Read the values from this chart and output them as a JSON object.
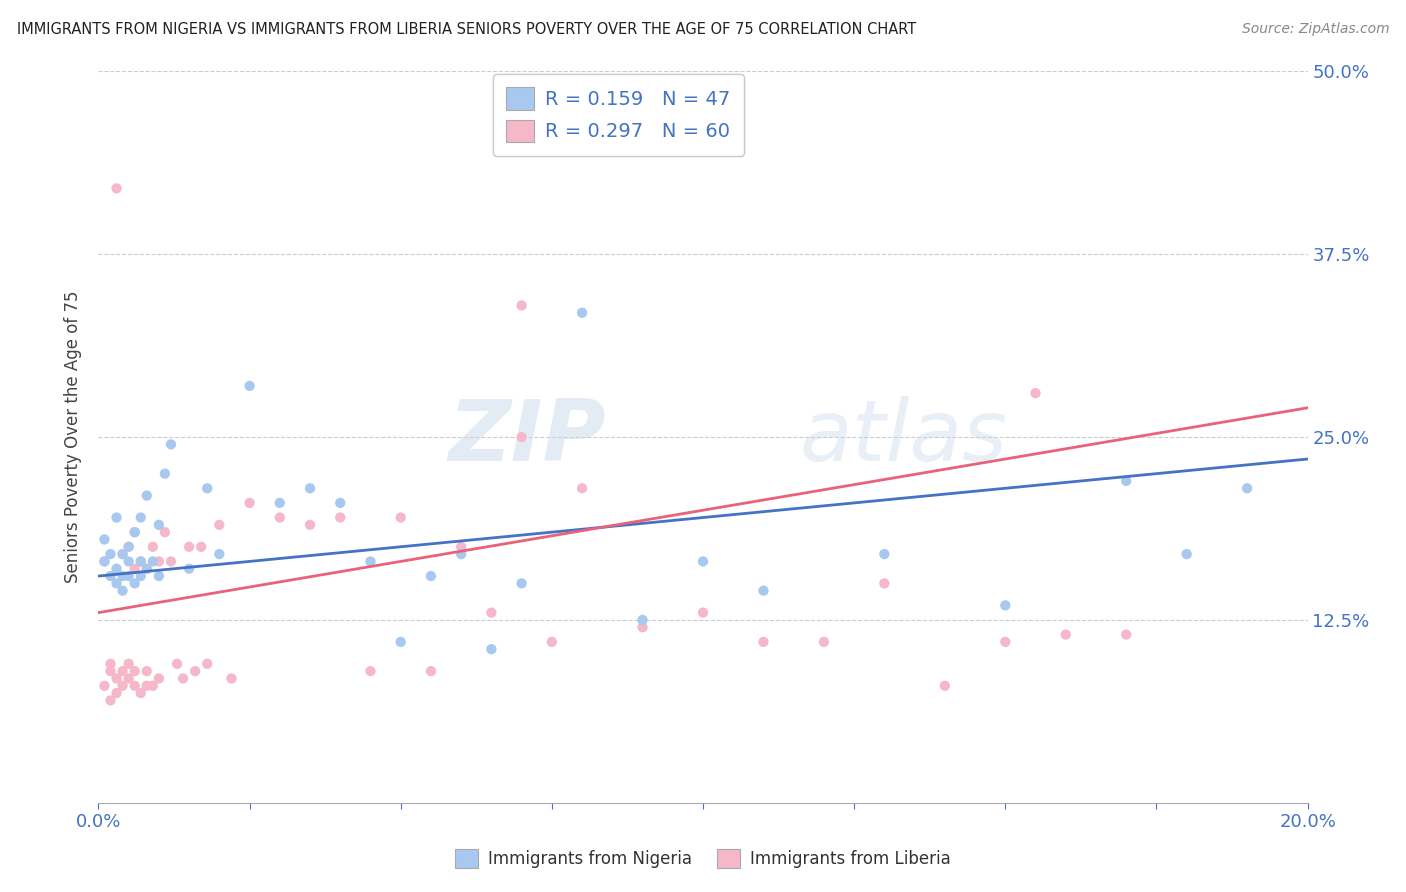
{
  "title": "IMMIGRANTS FROM NIGERIA VS IMMIGRANTS FROM LIBERIA SENIORS POVERTY OVER THE AGE OF 75 CORRELATION CHART",
  "source": "Source: ZipAtlas.com",
  "ylabel": "Seniors Poverty Over the Age of 75",
  "xlabel_nigeria": "Immigrants from Nigeria",
  "xlabel_liberia": "Immigrants from Liberia",
  "xlim": [
    0.0,
    0.2
  ],
  "ylim": [
    0.0,
    0.5
  ],
  "yticks": [
    0.0,
    0.125,
    0.25,
    0.375,
    0.5
  ],
  "xticks": [
    0.0,
    0.025,
    0.05,
    0.075,
    0.1,
    0.125,
    0.15,
    0.175,
    0.2
  ],
  "nigeria_R": 0.159,
  "nigeria_N": 47,
  "liberia_R": 0.297,
  "liberia_N": 60,
  "nigeria_color": "#a8c8f0",
  "liberia_color": "#f5b8c8",
  "nigeria_line_color": "#4472c4",
  "liberia_line_color": "#e8637a",
  "title_color": "#222222",
  "axis_label_color": "#4472c4",
  "legend_text_color": "#4472c4",
  "watermark_zip": "ZIP",
  "watermark_atlas": "atlas",
  "background_color": "#ffffff",
  "grid_color": "#cccccc",
  "scatter_size": 55,
  "nigeria_x": [
    0.001,
    0.001,
    0.002,
    0.002,
    0.003,
    0.003,
    0.003,
    0.004,
    0.004,
    0.004,
    0.005,
    0.005,
    0.005,
    0.006,
    0.006,
    0.007,
    0.007,
    0.007,
    0.008,
    0.008,
    0.009,
    0.01,
    0.01,
    0.011,
    0.012,
    0.015,
    0.018,
    0.02,
    0.025,
    0.03,
    0.035,
    0.04,
    0.045,
    0.05,
    0.055,
    0.06,
    0.065,
    0.07,
    0.08,
    0.09,
    0.1,
    0.11,
    0.13,
    0.15,
    0.17,
    0.18,
    0.19
  ],
  "nigeria_y": [
    0.165,
    0.18,
    0.155,
    0.17,
    0.15,
    0.16,
    0.195,
    0.145,
    0.17,
    0.155,
    0.155,
    0.175,
    0.165,
    0.15,
    0.185,
    0.155,
    0.165,
    0.195,
    0.21,
    0.16,
    0.165,
    0.155,
    0.19,
    0.225,
    0.245,
    0.16,
    0.215,
    0.17,
    0.285,
    0.205,
    0.215,
    0.205,
    0.165,
    0.11,
    0.155,
    0.17,
    0.105,
    0.15,
    0.335,
    0.125,
    0.165,
    0.145,
    0.17,
    0.135,
    0.22,
    0.17,
    0.215
  ],
  "liberia_x": [
    0.001,
    0.001,
    0.002,
    0.002,
    0.002,
    0.003,
    0.003,
    0.003,
    0.004,
    0.004,
    0.004,
    0.005,
    0.005,
    0.005,
    0.006,
    0.006,
    0.006,
    0.006,
    0.007,
    0.007,
    0.008,
    0.008,
    0.008,
    0.009,
    0.009,
    0.01,
    0.01,
    0.011,
    0.012,
    0.013,
    0.014,
    0.015,
    0.016,
    0.017,
    0.018,
    0.02,
    0.022,
    0.025,
    0.03,
    0.035,
    0.04,
    0.045,
    0.05,
    0.055,
    0.06,
    0.065,
    0.07,
    0.075,
    0.08,
    0.09,
    0.1,
    0.11,
    0.12,
    0.13,
    0.14,
    0.15,
    0.16,
    0.17,
    0.155,
    0.07
  ],
  "liberia_y": [
    0.165,
    0.08,
    0.095,
    0.07,
    0.09,
    0.085,
    0.075,
    0.42,
    0.09,
    0.08,
    0.17,
    0.085,
    0.095,
    0.175,
    0.08,
    0.09,
    0.16,
    0.185,
    0.075,
    0.165,
    0.08,
    0.09,
    0.16,
    0.175,
    0.08,
    0.085,
    0.165,
    0.185,
    0.165,
    0.095,
    0.085,
    0.175,
    0.09,
    0.175,
    0.095,
    0.19,
    0.085,
    0.205,
    0.195,
    0.19,
    0.195,
    0.09,
    0.195,
    0.09,
    0.175,
    0.13,
    0.25,
    0.11,
    0.215,
    0.12,
    0.13,
    0.11,
    0.11,
    0.15,
    0.08,
    0.11,
    0.115,
    0.115,
    0.28,
    0.34
  ],
  "nigeria_slope": 0.4,
  "nigeria_intercept": 0.155,
  "liberia_slope": 0.7,
  "liberia_intercept": 0.13
}
